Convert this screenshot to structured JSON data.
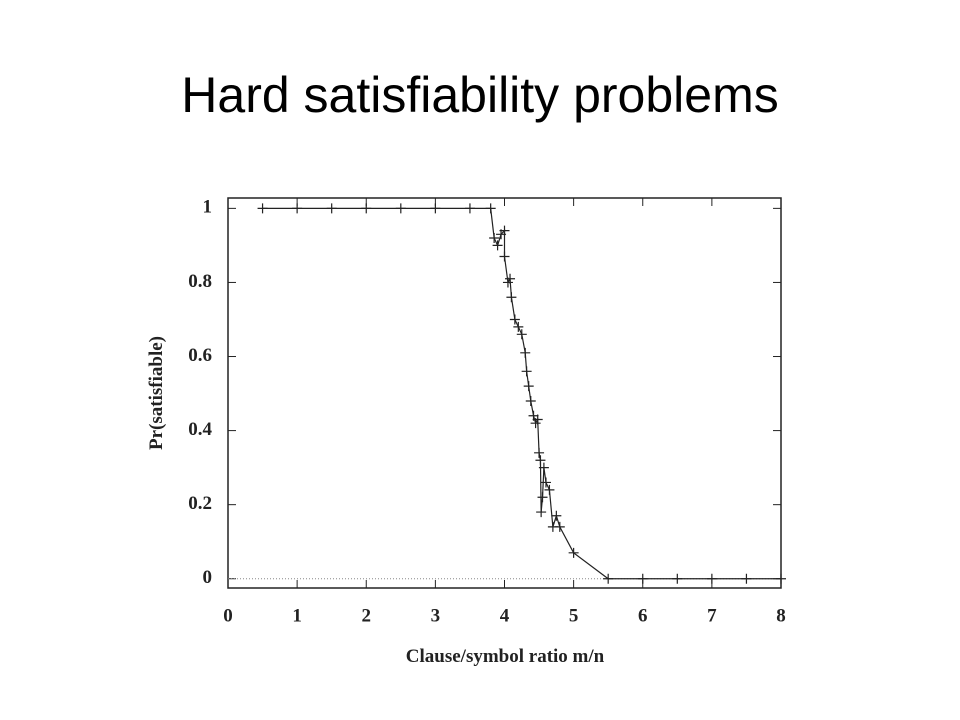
{
  "chart_data": {
    "type": "line",
    "title": "Hard satisfiability problems",
    "x_label": "Clause/symbol ratio m/n",
    "y_label": "Pr(satisfiable)",
    "x": [
      0.5,
      1,
      1.5,
      2,
      2.5,
      3,
      3.5,
      3.8,
      3.85,
      3.9,
      3.95,
      4.0,
      4.0,
      4.05,
      4.08,
      4.1,
      4.15,
      4.2,
      4.25,
      4.3,
      4.32,
      4.35,
      4.38,
      4.42,
      4.45,
      4.48,
      4.5,
      4.52,
      4.53,
      4.55,
      4.57,
      4.6,
      4.65,
      4.7,
      4.75,
      4.8,
      5,
      5.5,
      6,
      6.5,
      7,
      7.5,
      8
    ],
    "values": [
      1,
      1,
      1,
      1,
      1,
      1,
      1,
      1,
      0.92,
      0.9,
      0.93,
      0.94,
      0.87,
      0.8,
      0.81,
      0.76,
      0.7,
      0.68,
      0.66,
      0.61,
      0.56,
      0.52,
      0.48,
      0.44,
      0.42,
      0.43,
      0.34,
      0.32,
      0.18,
      0.22,
      0.3,
      0.26,
      0.24,
      0.14,
      0.17,
      0.14,
      0.07,
      0,
      0,
      0,
      0,
      0,
      0
    ],
    "color": "#222222",
    "marker": "+",
    "xlim": [
      0,
      8
    ],
    "xticks": [
      0,
      1,
      2,
      3,
      4,
      5,
      6,
      7,
      8
    ],
    "ylim": [
      -0.025,
      1.028
    ],
    "yticks": [
      0,
      0.2,
      0.4,
      0.6,
      0.8,
      1
    ],
    "hline": 0
  }
}
